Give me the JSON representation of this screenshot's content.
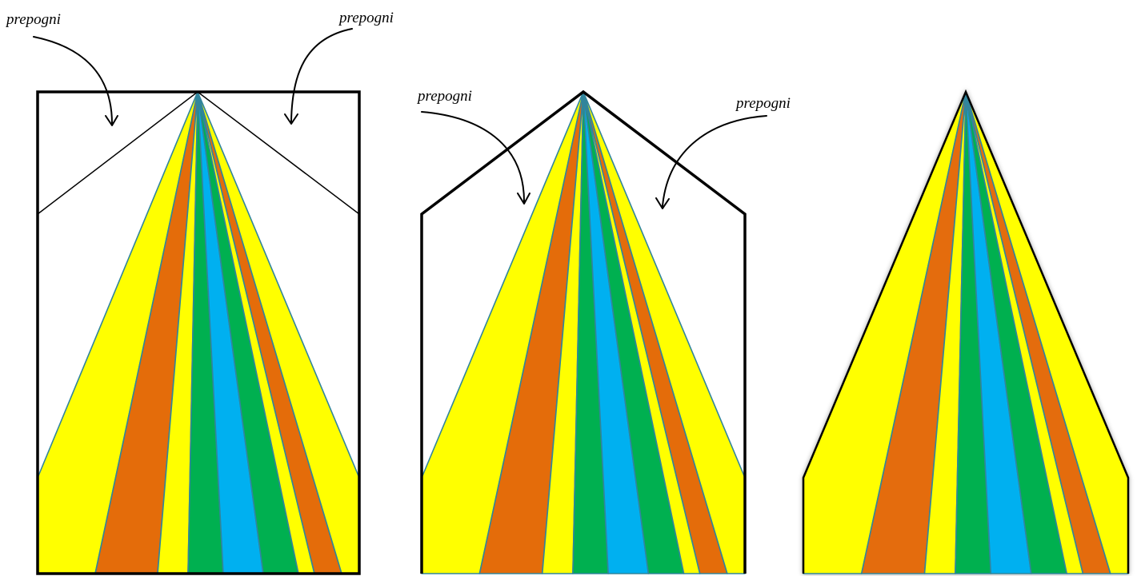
{
  "colors": {
    "yellow": "#ffff00",
    "orange": "#e46c0a",
    "green": "#00b050",
    "blue": "#00b0f0",
    "stripe_edge": "#31859c",
    "outline": "#000000"
  },
  "stripe_sequence": [
    "yellow",
    "orange",
    "yellow",
    "green",
    "blue",
    "green",
    "yellow",
    "orange",
    "yellow"
  ],
  "panels": [
    {
      "name": "step-1-rectangle",
      "labels": [
        "prepogni",
        "prepogni"
      ]
    },
    {
      "name": "step-2-folded-corners",
      "labels": [
        "prepogni",
        "prepogni"
      ]
    },
    {
      "name": "step-3-triangle",
      "labels": []
    }
  ]
}
